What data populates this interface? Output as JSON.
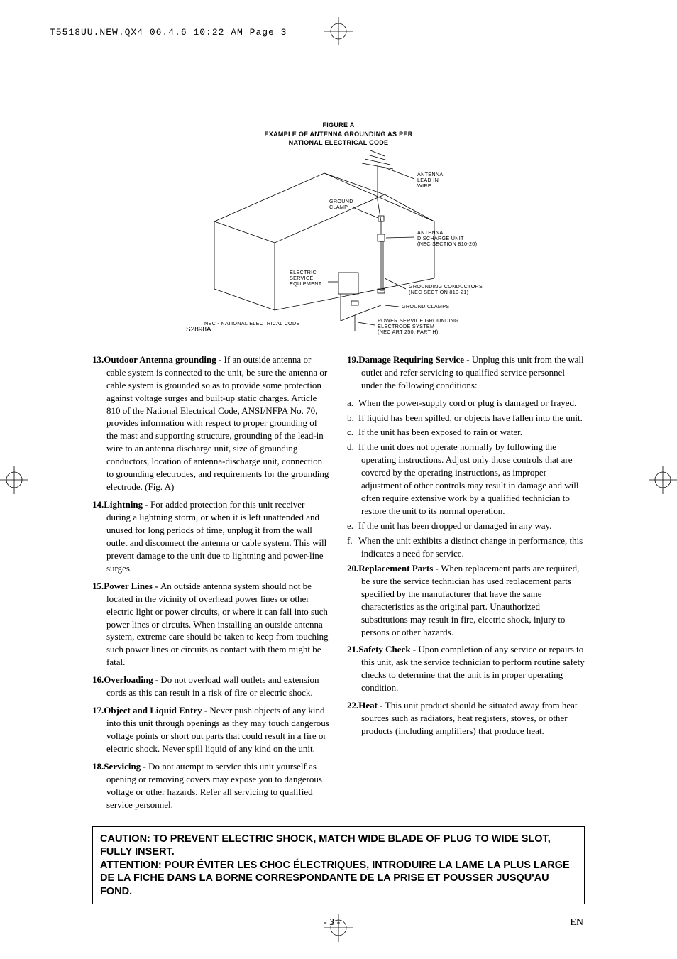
{
  "print_header": "T5518UU.NEW.QX4  06.4.6  10:22 AM  Page 3",
  "figure": {
    "title_line1": "FIGURE A",
    "title_line2": "EXAMPLE OF ANTENNA GROUNDING AS PER",
    "title_line3": "NATIONAL ELECTRICAL CODE",
    "id": "S2898A",
    "labels": {
      "antenna_lead": "ANTENNA\nLEAD IN\nWIRE",
      "ground_clamp_top": "GROUND\nCLAMP",
      "antenna_discharge": "ANTENNA\nDISCHARGE UNIT\n(NEC SECTION 810-20)",
      "electric_service": "ELECTRIC\nSERVICE\nEQUIPMENT",
      "grounding_conductors": "GROUNDING CONDUCTORS\n(NEC SECTION 810-21)",
      "ground_clamps": "GROUND CLAMPS",
      "power_service": "POWER SERVICE GROUNDING\nELECTRODE SYSTEM\n(NEC ART 250, PART H)",
      "nec": "NEC - NATIONAL ELECTRICAL CODE"
    },
    "stroke_color": "#000000",
    "stroke_width": 0.8
  },
  "left_column": [
    {
      "num": "13.",
      "title": "Outdoor Antenna grounding - ",
      "text": "If an outside antenna or cable system is connected to the unit, be sure the antenna or cable system is grounded so as to provide some protection against voltage surges and built-up static charges. Article 810 of the National Electrical Code, ANSI/NFPA No. 70, provides information with respect to proper grounding of the mast and supporting structure, grounding of the lead-in wire to an antenna discharge unit, size of grounding conductors, location of antenna-discharge unit, connection to grounding electrodes, and requirements for the grounding electrode. (Fig. A)"
    },
    {
      "num": "14.",
      "title": "Lightning - ",
      "text": "For added protection for this unit receiver during a lightning storm, or when it is left unattended and unused for long periods of time, unplug it from the wall outlet and disconnect the antenna or cable system. This will prevent damage to the unit due to lightning and power-line surges."
    },
    {
      "num": "15.",
      "title": "Power Lines - ",
      "text": "An outside antenna system should not be located in the vicinity of overhead power lines or other electric light or power circuits, or where it can fall into such power lines or circuits. When installing an outside antenna system, extreme care should be taken to keep from touching such power lines or circuits as contact with them might be fatal."
    },
    {
      "num": "16.",
      "title": "Overloading - ",
      "text": "Do not overload wall outlets and extension cords as this can result in a risk of fire or electric shock."
    },
    {
      "num": "17.",
      "title": "Object and Liquid Entry - ",
      "text": "Never push objects of any kind into this unit through openings as they may touch dangerous voltage points or short out parts that could result in a fire or electric shock. Never spill liquid of any kind on the unit."
    },
    {
      "num": "18.",
      "title": "Servicing - ",
      "text": "Do not attempt to service this unit yourself as opening or removing covers may expose you to dangerous voltage or other hazards. Refer all servicing to qualified service personnel."
    }
  ],
  "right_column": {
    "item19": {
      "num": "19.",
      "title": "Damage Requiring Service - ",
      "text": "Unplug this unit from the wall outlet and refer servicing to qualified service personnel under the following conditions:"
    },
    "item19_subs": [
      {
        "letter": "a.",
        "text": "When the power-supply cord or plug is damaged or frayed."
      },
      {
        "letter": "b.",
        "text": "If liquid has been spilled, or objects have fallen into the unit."
      },
      {
        "letter": "c.",
        "text": "If the unit has been exposed to rain or water."
      },
      {
        "letter": "d.",
        "text": "If the unit does not operate normally by following the operating instructions. Adjust only those controls that are covered by the operating instructions, as improper adjustment of other controls may result in damage and will often require extensive work by a qualified technician to restore the unit to its normal operation."
      },
      {
        "letter": "e.",
        "text": "If the unit has been dropped or damaged in any way."
      },
      {
        "letter": "f.",
        "text": "When the unit exhibits a distinct change in performance, this indicates a need for service."
      }
    ],
    "items_rest": [
      {
        "num": "20.",
        "title": "Replacement Parts - ",
        "text": "When replacement parts are required, be sure the service technician has used replacement parts specified by the manufacturer that have the same characteristics as the original part. Unauthorized substitutions may result in fire, electric shock, injury to persons or other hazards."
      },
      {
        "num": "21.",
        "title": "Safety Check - ",
        "text": "Upon completion of any service or repairs to this unit, ask the service technician to perform routine safety checks to determine that the unit is in proper operating condition."
      },
      {
        "num": "22.",
        "title": "Heat - ",
        "text": "This unit product should be situated away from heat sources such as radiators, heat registers, stoves, or other products (including amplifiers) that produce heat."
      }
    ]
  },
  "caution": {
    "line1": "CAUTION: TO PREVENT ELECTRIC SHOCK, MATCH WIDE BLADE OF PLUG TO WIDE SLOT, FULLY INSERT.",
    "line2": "ATTENTION: POUR ÉVITER LES CHOC ÉLECTRIQUES, INTRODUIRE LA LAME LA PLUS LARGE DE LA FICHE DANS LA BORNE CORRESPONDANTE DE LA PRISE ET POUSSER JUSQU'AU FOND."
  },
  "footer": {
    "page": "- 3 -",
    "lang": "EN"
  },
  "crop_mark": {
    "size": 40,
    "stroke": "#000000",
    "circle_r": 11
  }
}
